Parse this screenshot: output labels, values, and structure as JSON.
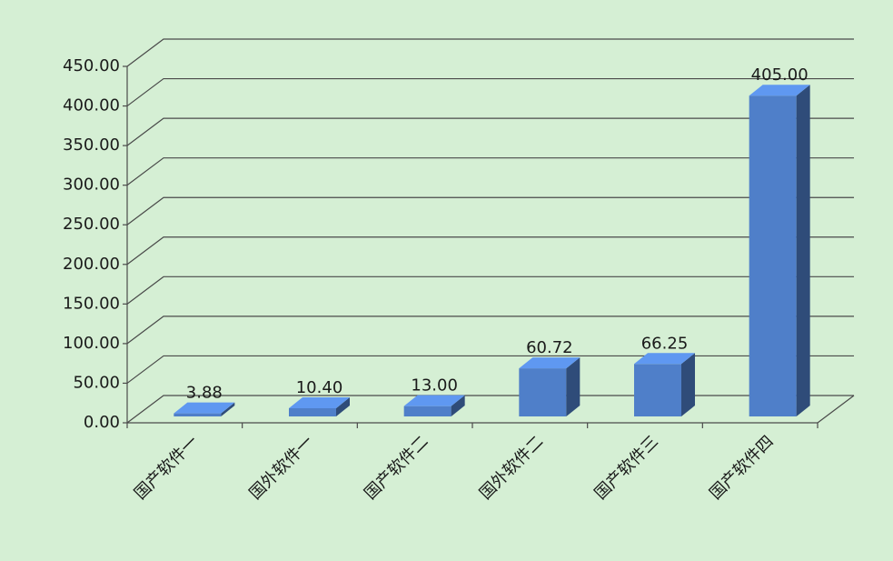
{
  "chart_data": {
    "type": "bar3d",
    "categories": [
      "国产软件一",
      "国外软件一",
      "国产软件二",
      "国外软件二",
      "国产软件三",
      "国产软件四"
    ],
    "values": [
      3.88,
      10.4,
      13,
      60.72,
      66.25,
      405
    ],
    "value_labels": [
      "3.88",
      "10.40",
      "13.00",
      "60.72",
      "66.25",
      "405.00"
    ],
    "color": "#4f7fc9",
    "ylim": [
      0,
      450
    ],
    "yticks": [
      {
        "value": 0,
        "label": "0.00"
      },
      {
        "value": 50,
        "label": "50.00"
      },
      {
        "value": 100,
        "label": "100.00"
      },
      {
        "value": 150,
        "label": "150.00"
      },
      {
        "value": 200,
        "label": "200.00"
      },
      {
        "value": 250,
        "label": "250.00"
      },
      {
        "value": 300,
        "label": "300.00"
      },
      {
        "value": 350,
        "label": "350.00"
      },
      {
        "value": 400,
        "label": "400.00"
      },
      {
        "value": 450,
        "label": "450.00"
      }
    ],
    "grid": true
  }
}
